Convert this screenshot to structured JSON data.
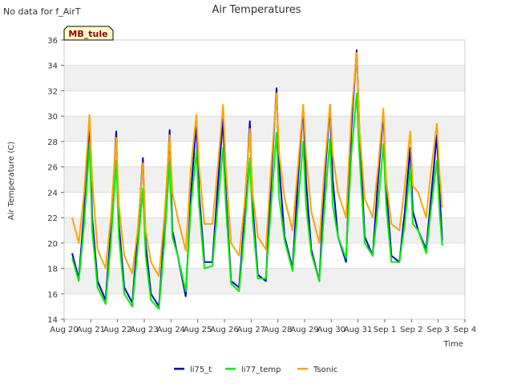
{
  "notice": "No data for f_AirT",
  "station_badge": "MB_tule",
  "colors": {
    "li75_t": "#0000cc",
    "li77_temp": "#00ee00",
    "Tsonic": "#ffa500",
    "band": "#f0f0f0",
    "badge_bg": "#ffffcc",
    "badge_text": "#990000"
  },
  "chart_data": {
    "type": "line",
    "title": "Air Temperatures",
    "xlabel": "Time",
    "ylabel": "Air Temperature (C)",
    "xlim": [
      "Aug 20",
      "Sep 4"
    ],
    "ylim": [
      14,
      36
    ],
    "x_ticks": [
      "Aug 20",
      "Aug 21",
      "Aug 22",
      "Aug 23",
      "Aug 24",
      "Aug 25",
      "Aug 26",
      "Aug 27",
      "Aug 28",
      "Aug 29",
      "Aug 30",
      "Aug 31",
      "Sep 1",
      "Sep 2",
      "Sep 3",
      "Sep 4"
    ],
    "y_ticks": [
      14,
      16,
      18,
      20,
      22,
      24,
      26,
      28,
      30,
      32,
      34,
      36
    ],
    "legend_position": "bottom",
    "series": [
      {
        "name": "li75_t",
        "x": [
          0.3,
          0.55,
          0.75,
          0.95,
          1.05,
          1.25,
          1.55,
          1.75,
          1.95,
          2.05,
          2.25,
          2.55,
          2.75,
          2.95,
          3.05,
          3.25,
          3.55,
          3.75,
          3.95,
          4.05,
          4.25,
          4.55,
          4.75,
          4.95,
          5.05,
          5.25,
          5.55,
          5.75,
          5.95,
          6.05,
          6.25,
          6.55,
          6.75,
          6.95,
          7.05,
          7.25,
          7.55,
          7.75,
          7.95,
          8.05,
          8.25,
          8.55,
          8.75,
          8.95,
          9.05,
          9.25,
          9.55,
          9.75,
          9.95,
          10.05,
          10.25,
          10.55,
          10.75,
          10.95,
          11.05,
          11.25,
          11.55,
          11.75,
          11.95,
          12.05,
          12.25,
          12.55,
          12.75,
          12.95,
          13.05,
          13.25,
          13.55,
          13.75,
          13.95,
          14.05,
          14.15
        ],
        "values": [
          19.2,
          17.2,
          22.5,
          29.8,
          22.0,
          17.0,
          15.5,
          21.0,
          28.8,
          21.5,
          16.5,
          15.3,
          20.5,
          26.7,
          20.0,
          16.0,
          15.0,
          21.0,
          28.9,
          21.0,
          19.0,
          15.8,
          24.0,
          29.5,
          24.0,
          18.5,
          18.5,
          24.5,
          29.8,
          24.0,
          17.0,
          16.5,
          22.0,
          29.6,
          23.0,
          17.5,
          17.0,
          25.0,
          32.2,
          26.0,
          20.5,
          18.0,
          25.0,
          30.8,
          25.0,
          19.5,
          17.0,
          25.0,
          30.9,
          25.0,
          20.5,
          18.5,
          29.0,
          35.2,
          29.0,
          20.5,
          19.0,
          25.0,
          30.3,
          24.5,
          19.0,
          18.5,
          22.5,
          27.5,
          22.5,
          21.0,
          19.5,
          24.0,
          28.5,
          24.0,
          20.2
        ]
      },
      {
        "name": "li77_temp",
        "x": [
          0.3,
          0.55,
          0.75,
          0.95,
          1.05,
          1.25,
          1.55,
          1.75,
          1.95,
          2.05,
          2.25,
          2.55,
          2.75,
          2.95,
          3.05,
          3.25,
          3.55,
          3.75,
          3.95,
          4.05,
          4.25,
          4.55,
          4.75,
          4.95,
          5.05,
          5.25,
          5.55,
          5.75,
          5.95,
          6.05,
          6.25,
          6.55,
          6.75,
          6.95,
          7.05,
          7.25,
          7.55,
          7.75,
          7.95,
          8.05,
          8.25,
          8.55,
          8.75,
          8.95,
          9.05,
          9.25,
          9.55,
          9.75,
          9.95,
          10.05,
          10.25,
          10.55,
          10.75,
          10.95,
          11.05,
          11.25,
          11.55,
          11.75,
          11.95,
          12.05,
          12.25,
          12.55,
          12.75,
          12.95,
          13.05,
          13.25,
          13.55,
          13.75,
          13.95,
          14.05,
          14.15
        ],
        "values": [
          18.8,
          17.0,
          21.5,
          27.8,
          21.0,
          16.5,
          15.2,
          20.0,
          26.5,
          20.5,
          16.0,
          15.0,
          19.5,
          24.3,
          19.0,
          15.5,
          14.8,
          20.0,
          26.5,
          20.5,
          19.0,
          16.2,
          23.0,
          27.2,
          23.0,
          18.0,
          18.2,
          23.0,
          27.5,
          23.0,
          16.8,
          16.2,
          21.0,
          26.7,
          22.0,
          17.2,
          17.2,
          23.0,
          28.7,
          23.5,
          20.2,
          17.8,
          23.0,
          28.0,
          23.0,
          19.2,
          17.0,
          23.0,
          28.2,
          23.0,
          20.5,
          18.8,
          27.0,
          31.8,
          27.0,
          20.0,
          19.0,
          23.0,
          27.8,
          23.0,
          18.5,
          18.5,
          21.5,
          26.0,
          21.5,
          21.0,
          19.2,
          23.0,
          26.5,
          22.5,
          19.8
        ]
      },
      {
        "name": "Tsonic",
        "x": [
          0.3,
          0.55,
          0.75,
          0.95,
          1.05,
          1.25,
          1.55,
          1.75,
          1.95,
          2.05,
          2.25,
          2.55,
          2.75,
          2.95,
          3.05,
          3.25,
          3.55,
          3.75,
          3.95,
          4.05,
          4.25,
          4.55,
          4.75,
          4.95,
          5.05,
          5.25,
          5.55,
          5.75,
          5.95,
          6.05,
          6.25,
          6.55,
          6.75,
          6.95,
          7.05,
          7.25,
          7.55,
          7.75,
          7.95,
          8.05,
          8.25,
          8.55,
          8.75,
          8.95,
          9.05,
          9.25,
          9.55,
          9.75,
          9.95,
          10.05,
          10.25,
          10.55,
          10.75,
          10.95,
          11.05,
          11.25,
          11.55,
          11.75,
          11.95,
          12.05,
          12.25,
          12.55,
          12.75,
          12.95,
          13.05,
          13.25,
          13.55,
          13.75,
          13.95,
          14.05,
          14.15
        ],
        "values": [
          22.0,
          20.0,
          24.0,
          30.1,
          25.0,
          19.5,
          18.0,
          22.0,
          28.3,
          23.0,
          19.0,
          17.6,
          21.0,
          26.3,
          21.0,
          18.5,
          17.4,
          22.0,
          28.5,
          24.0,
          22.0,
          19.4,
          26.0,
          30.1,
          26.0,
          21.5,
          21.5,
          26.0,
          30.9,
          26.0,
          20.0,
          19.0,
          23.0,
          29.0,
          24.0,
          20.5,
          19.5,
          26.0,
          31.8,
          27.0,
          23.5,
          21.0,
          26.0,
          30.9,
          27.0,
          22.5,
          20.0,
          26.0,
          30.9,
          27.0,
          24.0,
          22.0,
          30.0,
          35.0,
          29.0,
          23.5,
          22.0,
          26.0,
          30.6,
          25.0,
          21.5,
          21.0,
          24.5,
          28.8,
          24.5,
          24.0,
          22.0,
          26.0,
          29.4,
          25.5,
          22.8
        ]
      }
    ]
  }
}
